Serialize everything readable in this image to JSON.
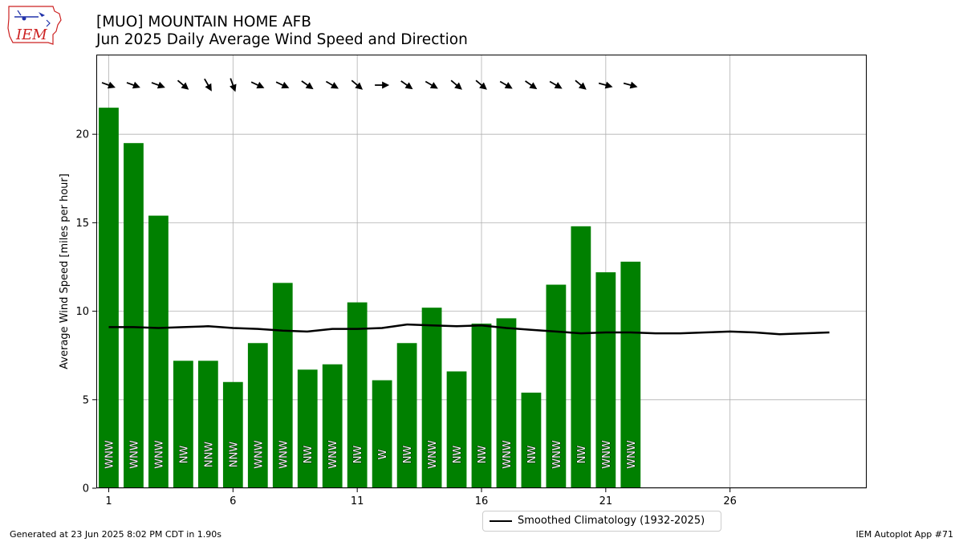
{
  "header": {
    "title_line1": "[MUO] MOUNTAIN HOME AFB",
    "title_line2": "Jun 2025 Daily Average Wind Speed and Direction"
  },
  "logo": {
    "text": "IEM",
    "icon": "iem-logo-icon"
  },
  "footer": {
    "left": "Generated at 23 Jun 2025 8:02 PM CDT in 1.90s",
    "right": "IEM Autoplot App #71"
  },
  "colors": {
    "bar": "#008000",
    "climatology": "#000000",
    "grid": "#b0b0b0",
    "logo_red": "#cc2222",
    "logo_blue": "#2233aa"
  },
  "chart_data": {
    "type": "bar",
    "title": "[MUO] MOUNTAIN HOME AFB",
    "subtitle": "Jun 2025 Daily Average Wind Speed and Direction",
    "xlabel": "",
    "ylabel": "Average Wind Speed [miles per hour]",
    "xlim": [
      0.5,
      31.5
    ],
    "ylim": [
      0,
      24.5
    ],
    "xticks": [
      1,
      6,
      11,
      16,
      21,
      26
    ],
    "yticks": [
      0,
      5,
      10,
      15,
      20
    ],
    "grid": true,
    "legend_position": "bottom-center",
    "days": [
      1,
      2,
      3,
      4,
      5,
      6,
      7,
      8,
      9,
      10,
      11,
      12,
      13,
      14,
      15,
      16,
      17,
      18,
      19,
      20,
      21,
      22
    ],
    "speed": [
      21.5,
      19.5,
      15.4,
      7.2,
      7.2,
      6.0,
      8.2,
      11.6,
      6.7,
      7.0,
      10.5,
      6.1,
      8.2,
      10.2,
      6.6,
      9.3,
      9.6,
      5.4,
      11.5,
      14.8,
      12.2,
      12.8
    ],
    "direction_labels": [
      "WNW",
      "WNW",
      "WNW",
      "NW",
      "NNW",
      "NNW",
      "WNW",
      "WNW",
      "NW",
      "WNW",
      "NW",
      "W",
      "NW",
      "WNW",
      "NW",
      "NW",
      "WNW",
      "NW",
      "WNW",
      "NW",
      "WNW",
      "WNW"
    ],
    "direction_degrees": [
      290,
      290,
      290,
      310,
      330,
      340,
      295,
      295,
      305,
      300,
      310,
      270,
      305,
      300,
      310,
      310,
      300,
      305,
      300,
      310,
      285,
      285
    ],
    "climatology": {
      "name": "Smoothed Climatology (1932-2025)",
      "x": [
        1,
        2,
        3,
        4,
        5,
        6,
        7,
        8,
        9,
        10,
        11,
        12,
        13,
        14,
        15,
        16,
        17,
        18,
        19,
        20,
        21,
        22,
        23,
        24,
        25,
        26,
        27,
        28,
        29,
        30
      ],
      "values": [
        9.1,
        9.1,
        9.05,
        9.1,
        9.15,
        9.05,
        9.0,
        8.9,
        8.85,
        9.0,
        9.0,
        9.05,
        9.25,
        9.2,
        9.15,
        9.2,
        9.05,
        8.95,
        8.85,
        8.75,
        8.8,
        8.8,
        8.75,
        8.75,
        8.8,
        8.85,
        8.8,
        8.7,
        8.75,
        8.8
      ]
    }
  }
}
